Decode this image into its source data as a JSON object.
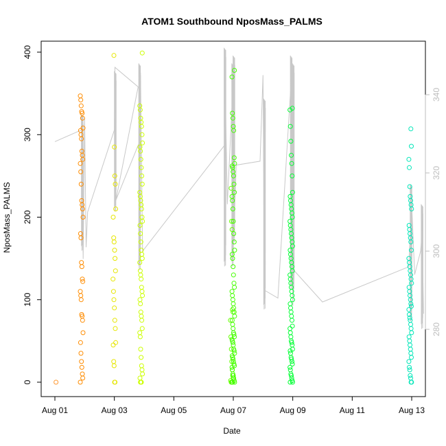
{
  "chart_data": {
    "type": "scatter",
    "title": "ATOM1 Southbound NposMass_PALMS",
    "xlabel": "Date",
    "ylabel": "NposMass_PALMS",
    "x_range_days": [
      0,
      12.5
    ],
    "ylim": [
      0,
      400
    ],
    "xticks": [
      {
        "day": 0,
        "label": "Aug 01"
      },
      {
        "day": 2,
        "label": "Aug 03"
      },
      {
        "day": 4,
        "label": "Aug 05"
      },
      {
        "day": 6,
        "label": "Aug 07"
      },
      {
        "day": 8,
        "label": "Aug 09"
      },
      {
        "day": 10,
        "label": "Aug 11"
      },
      {
        "day": 12,
        "label": "Aug 13"
      }
    ],
    "yticks": [
      0,
      100,
      200,
      300,
      400
    ],
    "right_axis": {
      "ylim": [
        262,
        352
      ],
      "ticks": [
        280,
        300,
        320,
        340
      ],
      "color": "#bdbdbd"
    },
    "grid": false,
    "line_series": {
      "color": "#c8c8c8",
      "points": [
        [
          0.0,
          328
        ],
        [
          0.9,
          331
        ],
        [
          0.95,
          298
        ],
        [
          1.0,
          334
        ],
        [
          1.05,
          301
        ],
        [
          1.1,
          310
        ],
        [
          2.0,
          331
        ],
        [
          2.02,
          347
        ],
        [
          2.8,
          342
        ],
        [
          2.05,
          313
        ],
        [
          2.85,
          328
        ],
        [
          2.88,
          345
        ],
        [
          2.95,
          300
        ],
        [
          5.7,
          327
        ],
        [
          5.72,
          345
        ],
        [
          5.8,
          312
        ],
        [
          5.85,
          320
        ],
        [
          6.0,
          344
        ],
        [
          6.05,
          312
        ],
        [
          6.1,
          322
        ],
        [
          6.9,
          323
        ],
        [
          7.0,
          345
        ],
        [
          7.05,
          290
        ],
        [
          7.5,
          288
        ],
        [
          7.95,
          344
        ],
        [
          8.0,
          286
        ],
        [
          8.05,
          295
        ],
        [
          9.0,
          287
        ],
        [
          11.9,
          296
        ],
        [
          12.0,
          312
        ],
        [
          12.1,
          294
        ],
        [
          12.3,
          300
        ],
        [
          12.35,
          305
        ],
        [
          12.4,
          284
        ]
      ],
      "spikes": [
        {
          "day": 0.92,
          "lo": 300,
          "hi": 335
        },
        {
          "day": 2.03,
          "lo": 310,
          "hi": 346
        },
        {
          "day": 2.85,
          "lo": 295,
          "hi": 348
        },
        {
          "day": 5.72,
          "lo": 296,
          "hi": 352
        },
        {
          "day": 5.98,
          "lo": 296,
          "hi": 348
        },
        {
          "day": 6.02,
          "lo": 302,
          "hi": 350
        },
        {
          "day": 7.05,
          "lo": 285,
          "hi": 339
        },
        {
          "day": 7.95,
          "lo": 290,
          "hi": 350
        },
        {
          "day": 8.02,
          "lo": 290,
          "hi": 348
        },
        {
          "day": 11.98,
          "lo": 282,
          "hi": 317
        },
        {
          "day": 12.35,
          "lo": 280,
          "hi": 312
        }
      ]
    },
    "scatter_groups": [
      {
        "day_center": 0.9,
        "color": "#ff8c00",
        "values": [
          0,
          5,
          10,
          18,
          25,
          35,
          48,
          60,
          75,
          80,
          82,
          100,
          105,
          110,
          122,
          125,
          140,
          145,
          175,
          180,
          200,
          210,
          215,
          220,
          240,
          255,
          265,
          270,
          275,
          280,
          295,
          300,
          305,
          308,
          320,
          326,
          328,
          335,
          342,
          347
        ]
      },
      {
        "day_center": 0.0,
        "color": "#ff9933",
        "values": [
          0
        ]
      },
      {
        "day_center": 2.0,
        "color": "#e6e600",
        "values": [
          0,
          0,
          20,
          25,
          45,
          48,
          65,
          75,
          90,
          100,
          110,
          125,
          135,
          150,
          160,
          170,
          175,
          200,
          210,
          240,
          250,
          285,
          396
        ]
      },
      {
        "day_center": 2.9,
        "color": "#ccff00",
        "values": [
          0,
          0,
          0,
          5,
          10,
          15,
          20,
          30,
          40,
          55,
          60,
          65,
          75,
          80,
          85,
          95,
          100,
          105,
          110,
          115,
          125,
          130,
          135,
          145,
          150,
          155,
          160,
          170,
          180,
          190,
          195,
          200,
          210,
          215,
          220,
          225,
          230,
          240,
          250,
          260,
          270,
          280,
          285,
          290,
          300,
          310,
          315,
          320,
          330,
          335,
          399
        ]
      },
      {
        "day_center": 5.95,
        "color": "#66ff00",
        "values": [
          0,
          0,
          2,
          5,
          8,
          15,
          25,
          40,
          55,
          75,
          85,
          88,
          185,
          195,
          235
        ]
      },
      {
        "day_center": 6.0,
        "color": "#44ff00",
        "values": [
          0,
          0,
          0,
          2,
          5,
          8,
          10,
          15,
          18,
          20,
          22,
          25,
          28,
          30,
          32,
          35,
          38,
          40,
          45,
          48,
          50,
          52,
          55,
          58,
          60,
          65,
          70,
          75,
          80,
          85,
          90,
          95,
          100,
          105,
          110,
          115,
          120,
          130,
          140,
          150,
          155,
          160,
          170,
          180,
          195,
          210,
          220,
          225,
          230,
          240,
          250,
          255,
          260,
          262,
          265,
          272,
          305,
          310,
          320,
          326,
          370,
          378
        ]
      },
      {
        "day_center": 7.95,
        "color": "#00ff33",
        "values": [
          0,
          0,
          2,
          5,
          8,
          10,
          15,
          18,
          22,
          25,
          28,
          30,
          35,
          38,
          40,
          45,
          48,
          50,
          55,
          60,
          65,
          68,
          75,
          80,
          85,
          90,
          95,
          100,
          105,
          110,
          115,
          120,
          125,
          130,
          135,
          140,
          145,
          150,
          155,
          160,
          165,
          170,
          175,
          180,
          185,
          190,
          195,
          200,
          205,
          210,
          215,
          220,
          225,
          230,
          250,
          265,
          275,
          292,
          310,
          330,
          332
        ]
      },
      {
        "day_center": 11.95,
        "color": "#00e6b8",
        "values": [
          0,
          0,
          5,
          8,
          15,
          18,
          25,
          30,
          35,
          40,
          45,
          50,
          55,
          60,
          65,
          70,
          75,
          78,
          82,
          88,
          92,
          95,
          100,
          105,
          110,
          115,
          120,
          125,
          130,
          135,
          140,
          145,
          150,
          160,
          170,
          175,
          180,
          185,
          190,
          210,
          215,
          220,
          225,
          237,
          260,
          270,
          286,
          307
        ]
      }
    ]
  }
}
